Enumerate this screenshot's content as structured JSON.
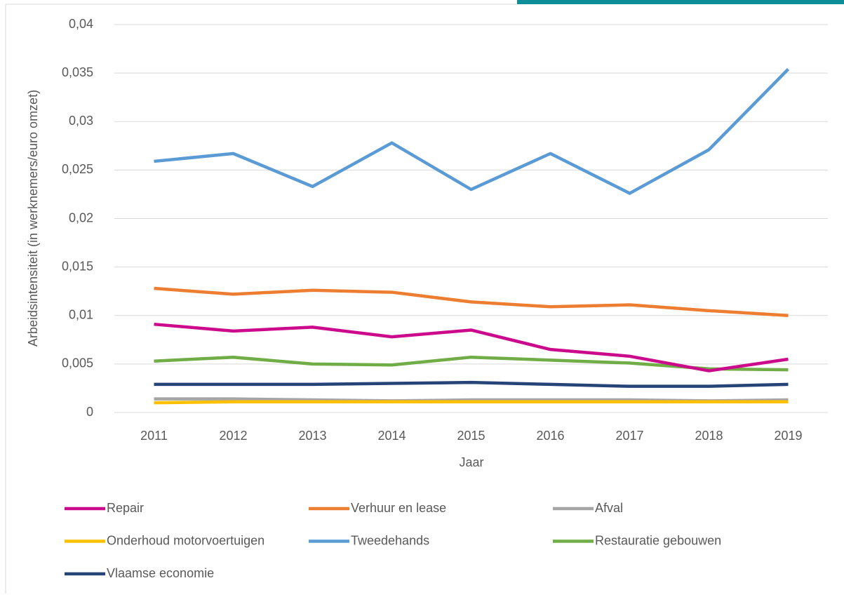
{
  "chart_data": {
    "type": "line",
    "y_label": "Arbeidsintensiteit (in werknemers/euro omzet)",
    "x_label": "Jaar",
    "categories": [
      "2011",
      "2012",
      "2013",
      "2014",
      "2015",
      "2016",
      "2017",
      "2018",
      "2019"
    ],
    "ylim": [
      0,
      0.04
    ],
    "yticks": [
      0,
      {
        "value": 0.005,
        "label": "0,005"
      },
      {
        "value": 0.01,
        "label": "0,01"
      },
      {
        "value": 0.015,
        "label": "0,015"
      },
      {
        "value": 0.02,
        "label": "0,02"
      },
      {
        "value": 0.025,
        "label": "0,025"
      },
      {
        "value": 0.03,
        "label": "0,03"
      },
      {
        "value": 0.035,
        "label": "0,035"
      },
      {
        "value": 0.04,
        "label": "0,04"
      }
    ],
    "grid": true,
    "legend": "bottom",
    "series": [
      {
        "name": "Repair",
        "color": "#cc0a8c",
        "values": [
          0.0091,
          0.0084,
          0.0088,
          0.0078,
          0.0085,
          0.0065,
          0.0058,
          0.0043,
          0.0055
        ]
      },
      {
        "name": "Verhuur en lease",
        "color": "#ed7d31",
        "values": [
          0.0128,
          0.0122,
          0.0126,
          0.0124,
          0.0114,
          0.0109,
          0.0111,
          0.0105,
          0.01
        ]
      },
      {
        "name": "Afval",
        "color": "#a5a5a5",
        "values": [
          0.0014,
          0.0014,
          0.0013,
          0.0012,
          0.0013,
          0.0013,
          0.0013,
          0.0012,
          0.0013
        ]
      },
      {
        "name": "Onderhoud motorvoertuigen",
        "color": "#ffc000",
        "values": [
          0.001,
          0.0011,
          0.0011,
          0.0011,
          0.0011,
          0.0011,
          0.0011,
          0.0011,
          0.0011
        ]
      },
      {
        "name": "Tweedehands",
        "color": "#5b9bd5",
        "values": [
          0.0259,
          0.0267,
          0.0233,
          0.0278,
          0.023,
          0.0267,
          0.0226,
          0.0271,
          0.0354
        ]
      },
      {
        "name": "Restauratie gebouwen",
        "color": "#70ad47",
        "values": [
          0.0053,
          0.0057,
          0.005,
          0.0049,
          0.0057,
          0.0054,
          0.0051,
          0.0045,
          0.0044
        ]
      },
      {
        "name": "Vlaamse economie",
        "color": "#264478",
        "values": [
          0.0029,
          0.0029,
          0.0029,
          0.003,
          0.0031,
          0.0029,
          0.0027,
          0.0027,
          0.0029
        ]
      }
    ]
  }
}
